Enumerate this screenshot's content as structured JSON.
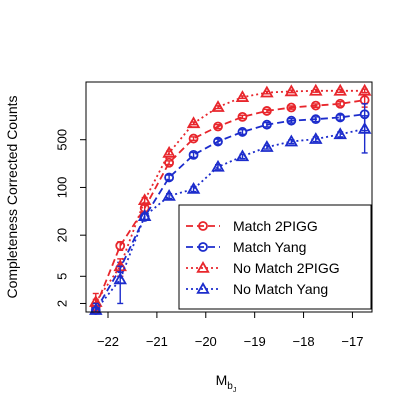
{
  "chart_data": {
    "type": "line",
    "title": "",
    "xlabel_main": "M",
    "xlabel_sub": "b",
    "xlabel_subsub": "J",
    "ylabel": "Completeness Corrected Counts",
    "x_scale": "linear",
    "y_scale": "log",
    "xlim": [
      -22.45,
      -16.6
    ],
    "ylim": [
      1.5,
      3500
    ],
    "x_ticks": [
      -22,
      -21,
      -20,
      -19,
      -18,
      -17
    ],
    "x_tick_labels": [
      "−22",
      "−21",
      "−20",
      "−19",
      "−18",
      "−17"
    ],
    "y_ticks": [
      2,
      5,
      20,
      100,
      500
    ],
    "y_tick_labels": [
      "2",
      "5",
      "20",
      "100",
      "500"
    ],
    "legend_position": "bottom-right",
    "grid": false,
    "series": [
      {
        "name": "Match 2PIGG",
        "color": "#e8262c",
        "marker": "circle",
        "line_style": "dashed",
        "x": [
          -22.25,
          -21.75,
          -21.25,
          -20.75,
          -20.25,
          -19.75,
          -19.25,
          -18.75,
          -18.25,
          -17.75,
          -17.25,
          -16.75
        ],
        "y": [
          1.8,
          14,
          50,
          230,
          520,
          780,
          1080,
          1320,
          1480,
          1580,
          1680,
          1900
        ],
        "err": [
          0.5,
          2,
          5,
          15,
          30,
          50,
          60,
          70,
          80,
          90,
          120,
          400
        ]
      },
      {
        "name": "Match Yang",
        "color": "#1c2ccc",
        "marker": "circle",
        "line_style": "dashed",
        "x": [
          -22.25,
          -21.75,
          -21.25,
          -20.75,
          -20.25,
          -19.75,
          -19.25,
          -18.75,
          -18.25,
          -17.75,
          -17.25,
          -16.75
        ],
        "y": [
          1.6,
          6.5,
          37,
          140,
          300,
          470,
          650,
          830,
          950,
          1000,
          1060,
          1180
        ],
        "err": [
          0.4,
          1.5,
          4,
          12,
          25,
          40,
          50,
          60,
          70,
          80,
          90,
          500
        ]
      },
      {
        "name": "No Match 2PIGG",
        "color": "#e8262c",
        "marker": "triangle",
        "line_style": "dotted",
        "x": [
          -22.25,
          -21.75,
          -21.25,
          -20.75,
          -20.25,
          -19.75,
          -19.25,
          -18.75,
          -18.25,
          -17.75,
          -17.25,
          -16.75
        ],
        "y": [
          2.1,
          7,
          65,
          320,
          870,
          1500,
          2100,
          2450,
          2550,
          2600,
          2600,
          2600
        ],
        "err": [
          0.7,
          2,
          6,
          20,
          40,
          70,
          90,
          100,
          110,
          120,
          130,
          150
        ]
      },
      {
        "name": "No Match Yang",
        "color": "#1c2ccc",
        "marker": "triangle",
        "line_style": "dotted",
        "x": [
          -22.25,
          -21.75,
          -21.25,
          -20.75,
          -20.25,
          -19.75,
          -19.25,
          -18.75,
          -18.25,
          -17.75,
          -17.25,
          -16.75
        ],
        "y": [
          1.6,
          4.5,
          38,
          75,
          95,
          200,
          285,
          390,
          470,
          510,
          600,
          720
        ],
        "err": [
          0.4,
          2.5,
          4,
          6,
          8,
          15,
          20,
          25,
          30,
          40,
          50,
          400
        ]
      }
    ]
  }
}
